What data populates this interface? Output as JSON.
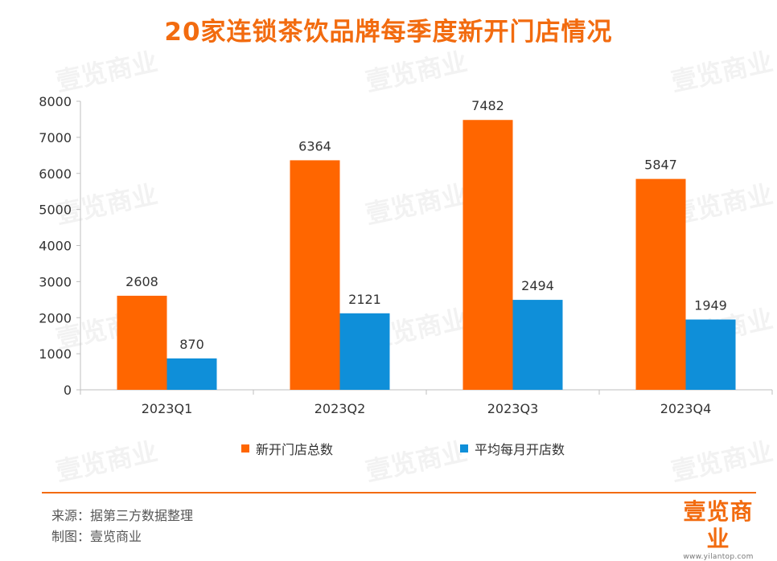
{
  "title": "20家连锁茶饮品牌每季度新开门店情况",
  "source": "来源：据第三方数据整理",
  "made_by": "制图：壹览商业",
  "logo": {
    "text": "壹览商业",
    "url": "www.yilantop.com"
  },
  "watermark": "壹览商业",
  "colors": {
    "accent": "#F26B0F",
    "series1": "#FF6600",
    "series2": "#0F8FD9",
    "grid": "#D9D9D9"
  },
  "chart_data": {
    "type": "bar",
    "categories": [
      "2023Q1",
      "2023Q2",
      "2023Q3",
      "2023Q4"
    ],
    "series": [
      {
        "name": "新开门店总数",
        "values": [
          2608,
          6364,
          7482,
          5847
        ]
      },
      {
        "name": "平均每月开店数",
        "values": [
          870,
          2121,
          2494,
          1949
        ]
      }
    ],
    "ylim": [
      0,
      8000
    ],
    "yticks": [
      0,
      1000,
      2000,
      3000,
      4000,
      5000,
      6000,
      7000,
      8000
    ],
    "grid": false,
    "legend": "bottom",
    "data_labels": true
  }
}
